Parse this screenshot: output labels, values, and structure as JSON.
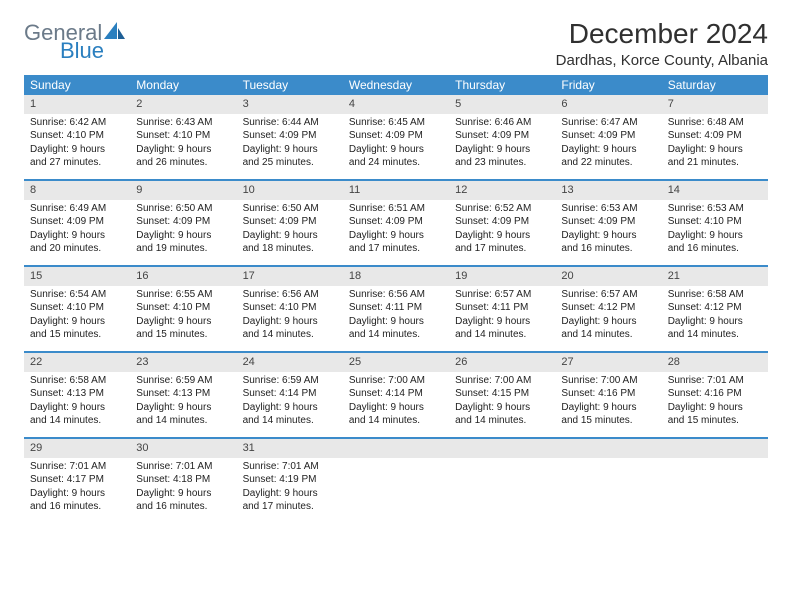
{
  "brand": {
    "part1": "General",
    "part2": "Blue"
  },
  "title": "December 2024",
  "location": "Dardhas, Korce County, Albania",
  "colors": {
    "header_bg": "#3b8bca",
    "header_text": "#ffffff",
    "daynum_bg": "#e8e8e8",
    "week_border": "#3b8bca",
    "logo_gray": "#6b7a89",
    "logo_blue": "#2a7fbf"
  },
  "day_names": [
    "Sunday",
    "Monday",
    "Tuesday",
    "Wednesday",
    "Thursday",
    "Friday",
    "Saturday"
  ],
  "weeks": [
    [
      {
        "n": "1",
        "sr": "Sunrise: 6:42 AM",
        "ss": "Sunset: 4:10 PM",
        "dl1": "Daylight: 9 hours",
        "dl2": "and 27 minutes."
      },
      {
        "n": "2",
        "sr": "Sunrise: 6:43 AM",
        "ss": "Sunset: 4:10 PM",
        "dl1": "Daylight: 9 hours",
        "dl2": "and 26 minutes."
      },
      {
        "n": "3",
        "sr": "Sunrise: 6:44 AM",
        "ss": "Sunset: 4:09 PM",
        "dl1": "Daylight: 9 hours",
        "dl2": "and 25 minutes."
      },
      {
        "n": "4",
        "sr": "Sunrise: 6:45 AM",
        "ss": "Sunset: 4:09 PM",
        "dl1": "Daylight: 9 hours",
        "dl2": "and 24 minutes."
      },
      {
        "n": "5",
        "sr": "Sunrise: 6:46 AM",
        "ss": "Sunset: 4:09 PM",
        "dl1": "Daylight: 9 hours",
        "dl2": "and 23 minutes."
      },
      {
        "n": "6",
        "sr": "Sunrise: 6:47 AM",
        "ss": "Sunset: 4:09 PM",
        "dl1": "Daylight: 9 hours",
        "dl2": "and 22 minutes."
      },
      {
        "n": "7",
        "sr": "Sunrise: 6:48 AM",
        "ss": "Sunset: 4:09 PM",
        "dl1": "Daylight: 9 hours",
        "dl2": "and 21 minutes."
      }
    ],
    [
      {
        "n": "8",
        "sr": "Sunrise: 6:49 AM",
        "ss": "Sunset: 4:09 PM",
        "dl1": "Daylight: 9 hours",
        "dl2": "and 20 minutes."
      },
      {
        "n": "9",
        "sr": "Sunrise: 6:50 AM",
        "ss": "Sunset: 4:09 PM",
        "dl1": "Daylight: 9 hours",
        "dl2": "and 19 minutes."
      },
      {
        "n": "10",
        "sr": "Sunrise: 6:50 AM",
        "ss": "Sunset: 4:09 PM",
        "dl1": "Daylight: 9 hours",
        "dl2": "and 18 minutes."
      },
      {
        "n": "11",
        "sr": "Sunrise: 6:51 AM",
        "ss": "Sunset: 4:09 PM",
        "dl1": "Daylight: 9 hours",
        "dl2": "and 17 minutes."
      },
      {
        "n": "12",
        "sr": "Sunrise: 6:52 AM",
        "ss": "Sunset: 4:09 PM",
        "dl1": "Daylight: 9 hours",
        "dl2": "and 17 minutes."
      },
      {
        "n": "13",
        "sr": "Sunrise: 6:53 AM",
        "ss": "Sunset: 4:09 PM",
        "dl1": "Daylight: 9 hours",
        "dl2": "and 16 minutes."
      },
      {
        "n": "14",
        "sr": "Sunrise: 6:53 AM",
        "ss": "Sunset: 4:10 PM",
        "dl1": "Daylight: 9 hours",
        "dl2": "and 16 minutes."
      }
    ],
    [
      {
        "n": "15",
        "sr": "Sunrise: 6:54 AM",
        "ss": "Sunset: 4:10 PM",
        "dl1": "Daylight: 9 hours",
        "dl2": "and 15 minutes."
      },
      {
        "n": "16",
        "sr": "Sunrise: 6:55 AM",
        "ss": "Sunset: 4:10 PM",
        "dl1": "Daylight: 9 hours",
        "dl2": "and 15 minutes."
      },
      {
        "n": "17",
        "sr": "Sunrise: 6:56 AM",
        "ss": "Sunset: 4:10 PM",
        "dl1": "Daylight: 9 hours",
        "dl2": "and 14 minutes."
      },
      {
        "n": "18",
        "sr": "Sunrise: 6:56 AM",
        "ss": "Sunset: 4:11 PM",
        "dl1": "Daylight: 9 hours",
        "dl2": "and 14 minutes."
      },
      {
        "n": "19",
        "sr": "Sunrise: 6:57 AM",
        "ss": "Sunset: 4:11 PM",
        "dl1": "Daylight: 9 hours",
        "dl2": "and 14 minutes."
      },
      {
        "n": "20",
        "sr": "Sunrise: 6:57 AM",
        "ss": "Sunset: 4:12 PM",
        "dl1": "Daylight: 9 hours",
        "dl2": "and 14 minutes."
      },
      {
        "n": "21",
        "sr": "Sunrise: 6:58 AM",
        "ss": "Sunset: 4:12 PM",
        "dl1": "Daylight: 9 hours",
        "dl2": "and 14 minutes."
      }
    ],
    [
      {
        "n": "22",
        "sr": "Sunrise: 6:58 AM",
        "ss": "Sunset: 4:13 PM",
        "dl1": "Daylight: 9 hours",
        "dl2": "and 14 minutes."
      },
      {
        "n": "23",
        "sr": "Sunrise: 6:59 AM",
        "ss": "Sunset: 4:13 PM",
        "dl1": "Daylight: 9 hours",
        "dl2": "and 14 minutes."
      },
      {
        "n": "24",
        "sr": "Sunrise: 6:59 AM",
        "ss": "Sunset: 4:14 PM",
        "dl1": "Daylight: 9 hours",
        "dl2": "and 14 minutes."
      },
      {
        "n": "25",
        "sr": "Sunrise: 7:00 AM",
        "ss": "Sunset: 4:14 PM",
        "dl1": "Daylight: 9 hours",
        "dl2": "and 14 minutes."
      },
      {
        "n": "26",
        "sr": "Sunrise: 7:00 AM",
        "ss": "Sunset: 4:15 PM",
        "dl1": "Daylight: 9 hours",
        "dl2": "and 14 minutes."
      },
      {
        "n": "27",
        "sr": "Sunrise: 7:00 AM",
        "ss": "Sunset: 4:16 PM",
        "dl1": "Daylight: 9 hours",
        "dl2": "and 15 minutes."
      },
      {
        "n": "28",
        "sr": "Sunrise: 7:01 AM",
        "ss": "Sunset: 4:16 PM",
        "dl1": "Daylight: 9 hours",
        "dl2": "and 15 minutes."
      }
    ],
    [
      {
        "n": "29",
        "sr": "Sunrise: 7:01 AM",
        "ss": "Sunset: 4:17 PM",
        "dl1": "Daylight: 9 hours",
        "dl2": "and 16 minutes."
      },
      {
        "n": "30",
        "sr": "Sunrise: 7:01 AM",
        "ss": "Sunset: 4:18 PM",
        "dl1": "Daylight: 9 hours",
        "dl2": "and 16 minutes."
      },
      {
        "n": "31",
        "sr": "Sunrise: 7:01 AM",
        "ss": "Sunset: 4:19 PM",
        "dl1": "Daylight: 9 hours",
        "dl2": "and 17 minutes."
      },
      {
        "empty": true
      },
      {
        "empty": true
      },
      {
        "empty": true
      },
      {
        "empty": true
      }
    ]
  ]
}
